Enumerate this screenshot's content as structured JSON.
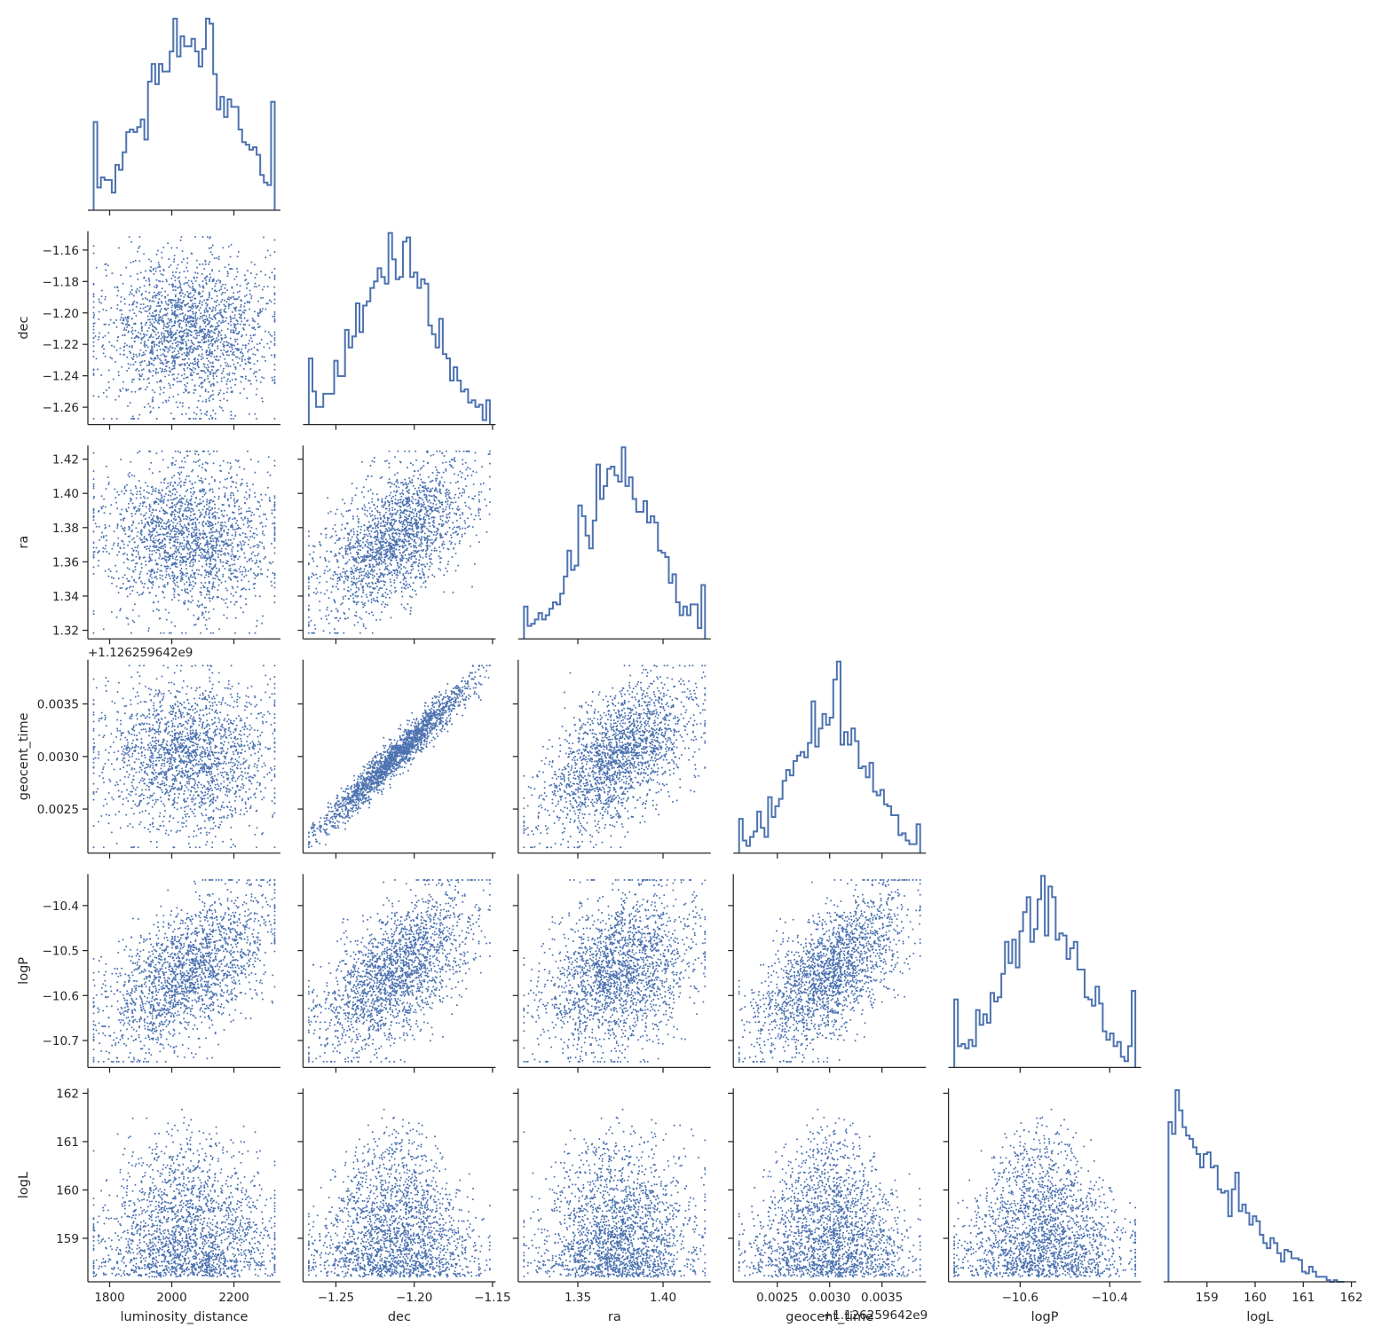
{
  "chart_data": {
    "type": "scatter",
    "title": "",
    "subtitle": "",
    "layout": "corner-pairplot",
    "grid": false,
    "legend": "none",
    "colors": {
      "points": "#4c72b0",
      "hist": "#4c72b0",
      "axes": "#262626"
    },
    "variables": [
      {
        "name": "luminosity_distance",
        "label": "luminosity_distance",
        "range": [
          1730,
          2350
        ],
        "ticks": [
          1800,
          2000,
          2200
        ],
        "tick_labels": [
          "1800",
          "2000",
          "2200"
        ],
        "mean": 2050,
        "sd": 135
      },
      {
        "name": "dec",
        "label": "dec",
        "range": [
          -1.271,
          -1.148
        ],
        "ticks": [
          -1.25,
          -1.2,
          -1.15
        ],
        "tick_labels": [
          "−1.25",
          "−1.20",
          "−1.15"
        ],
        "ytick_values": [
          -1.16,
          -1.18,
          -1.2,
          -1.22,
          -1.24,
          -1.26
        ],
        "ytick_labels": [
          "−1.16",
          "−1.18",
          "−1.20",
          "−1.22",
          "−1.24",
          "−1.26"
        ],
        "mean": -1.212,
        "sd": 0.024
      },
      {
        "name": "ra",
        "label": "ra",
        "range": [
          1.315,
          1.428
        ],
        "ticks": [
          1.35,
          1.4
        ],
        "tick_labels": [
          "1.35",
          "1.40"
        ],
        "ytick_values": [
          1.42,
          1.4,
          1.38,
          1.36,
          1.34,
          1.32
        ],
        "ytick_labels": [
          "1.42",
          "1.40",
          "1.38",
          "1.36",
          "1.34",
          "1.32"
        ],
        "mean": 1.374,
        "sd": 0.022
      },
      {
        "name": "geocent_time",
        "label": "geocent_time",
        "range": [
          0.00208,
          0.00392
        ],
        "ticks": [
          0.0025,
          0.003,
          0.0035
        ],
        "tick_labels": [
          "0.0025",
          "0.0030",
          "0.0035"
        ],
        "ytick_values": [
          0.0035,
          0.003,
          0.0025
        ],
        "ytick_labels": [
          "0.0035",
          "0.0030",
          "0.0025"
        ],
        "offset_label": "+1.126259642e9",
        "xoffset_label": "+1.126259642e9",
        "mean": 0.003,
        "sd": 0.00035
      },
      {
        "name": "logP",
        "label": "logP",
        "range": [
          -10.76,
          -10.33
        ],
        "ticks": [
          -10.6,
          -10.4
        ],
        "tick_labels": [
          "−10.6",
          "−10.4"
        ],
        "ytick_values": [
          -10.4,
          -10.5,
          -10.6,
          -10.7
        ],
        "ytick_labels": [
          "−10.4",
          "−10.5",
          "−10.6",
          "−10.7"
        ],
        "mean": -10.55,
        "sd": 0.085
      },
      {
        "name": "logL",
        "label": "logL",
        "range": [
          158.1,
          162.1
        ],
        "ticks": [
          159,
          160,
          161,
          162
        ],
        "tick_labels": [
          "159",
          "160",
          "161",
          "162"
        ],
        "ytick_values": [
          162,
          161,
          160,
          159
        ],
        "ytick_labels": [
          "162",
          "161",
          "160",
          "159"
        ],
        "min": 158.2,
        "max": 161.85
      }
    ],
    "correlations": [
      {
        "x": "luminosity_distance",
        "y": "dec",
        "r": -0.05
      },
      {
        "x": "luminosity_distance",
        "y": "ra",
        "r": -0.05
      },
      {
        "x": "dec",
        "y": "ra",
        "r": 0.55
      },
      {
        "x": "luminosity_distance",
        "y": "geocent_time",
        "r": -0.05
      },
      {
        "x": "dec",
        "y": "geocent_time",
        "r": 0.97
      },
      {
        "x": "ra",
        "y": "geocent_time",
        "r": 0.55
      },
      {
        "x": "luminosity_distance",
        "y": "logP",
        "r": 0.55
      },
      {
        "x": "dec",
        "y": "logP",
        "r": 0.58
      },
      {
        "x": "ra",
        "y": "logP",
        "r": 0.3
      },
      {
        "x": "geocent_time",
        "y": "logP",
        "r": 0.62
      }
    ],
    "n_samples": 2000,
    "hist_bins": 50
  }
}
